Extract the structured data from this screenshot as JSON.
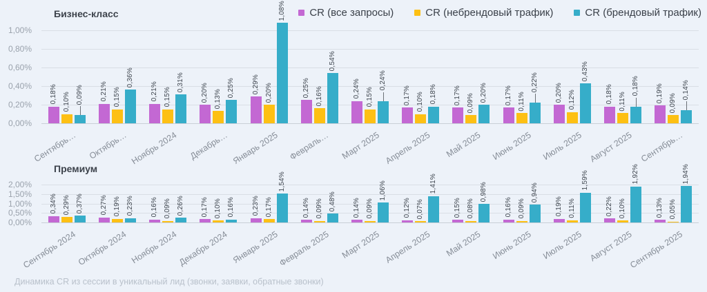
{
  "page": {
    "background": "#edf2f9",
    "caption": "Динамика CR из сессии в уникальный лид (звонки, заявки, обратные звонки)"
  },
  "legend": {
    "items": [
      {
        "label": "CR (все запросы)",
        "color": "#c368d3"
      },
      {
        "label": "CR (небрендовый трафик)",
        "color": "#fdc014"
      },
      {
        "label": "CR (брендовый трафик)",
        "color": "#36adc9"
      }
    ]
  },
  "chart_data": [
    {
      "type": "bar",
      "title": "Бизнес-класс",
      "grid": true,
      "legend_position": "top-right",
      "value_label_format": "percent-comma",
      "ylim": [
        0,
        1.0
      ],
      "yticks": [
        {
          "label": "0,00%",
          "value": 0
        },
        {
          "label": "0,20%",
          "value": 0.2
        },
        {
          "label": "0,40%",
          "value": 0.4
        },
        {
          "label": "0,60%",
          "value": 0.6
        },
        {
          "label": "0,80%",
          "value": 0.8
        },
        {
          "label": "1,00%",
          "value": 1.0
        }
      ],
      "categories": [
        "Сентябрь…",
        "Октябрь…",
        "Ноябрь 2024",
        "Декабрь…",
        "Январь 2025",
        "Февраль…",
        "Март 2025",
        "Апрель 2025",
        "Май 2025",
        "Июнь 2025",
        "Июль 2025",
        "Август 2025",
        "Сентябрь…"
      ],
      "series": [
        {
          "name": "CR (все запросы)",
          "color": "#c368d3",
          "values": [
            0.18,
            0.21,
            0.21,
            0.2,
            0.29,
            0.25,
            0.24,
            0.17,
            0.17,
            0.17,
            0.2,
            0.18,
            0.19
          ]
        },
        {
          "name": "CR (небрендовый трафик)",
          "color": "#fdc014",
          "values": [
            0.1,
            0.15,
            0.15,
            0.13,
            0.2,
            0.16,
            0.15,
            0.1,
            0.09,
            0.11,
            0.12,
            0.11,
            0.09
          ]
        },
        {
          "name": "CR (брендовый трафик)",
          "color": "#36adc9",
          "values": [
            0.09,
            0.36,
            0.31,
            0.25,
            1.08,
            0.54,
            0.24,
            0.18,
            0.2,
            0.22,
            0.43,
            0.18,
            0.14
          ],
          "leader_indices": [
            0,
            6,
            9,
            11,
            12
          ]
        }
      ]
    },
    {
      "type": "bar",
      "title": "Премиум",
      "grid": true,
      "value_label_format": "percent-comma",
      "ylim": [
        0,
        2.0
      ],
      "yticks": [
        {
          "label": "0,00%",
          "value": 0
        },
        {
          "label": "0,50%",
          "value": 0.5
        },
        {
          "label": "1,00%",
          "value": 1.0
        },
        {
          "label": "1,50%",
          "value": 1.5
        },
        {
          "label": "2,00%",
          "value": 2.0
        }
      ],
      "categories": [
        "Сентябрь 2024",
        "Октябрь 2024",
        "Ноябрь 2024",
        "Декабрь 2024",
        "Январь 2025",
        "Февраль 2025",
        "Март 2025",
        "Апрель 2025",
        "Май 2025",
        "Июнь 2025",
        "Июль 2025",
        "Август 2025",
        "Сентябрь 2025"
      ],
      "series": [
        {
          "name": "CR (все запросы)",
          "color": "#c368d3",
          "values": [
            0.34,
            0.27,
            0.16,
            0.17,
            0.23,
            0.14,
            0.14,
            0.12,
            0.15,
            0.16,
            0.19,
            0.22,
            0.13
          ]
        },
        {
          "name": "CR (небрендовый трафик)",
          "color": "#fdc014",
          "values": [
            0.29,
            0.19,
            0.09,
            0.1,
            0.17,
            0.09,
            0.09,
            0.07,
            0.08,
            0.09,
            0.11,
            0.1,
            0.05
          ]
        },
        {
          "name": "CR (брендовый трафик)",
          "color": "#36adc9",
          "values": [
            0.37,
            0.23,
            0.26,
            0.16,
            1.54,
            0.48,
            1.06,
            1.41,
            0.98,
            0.94,
            1.59,
            1.92,
            1.94
          ],
          "leader_indices": []
        }
      ]
    }
  ]
}
